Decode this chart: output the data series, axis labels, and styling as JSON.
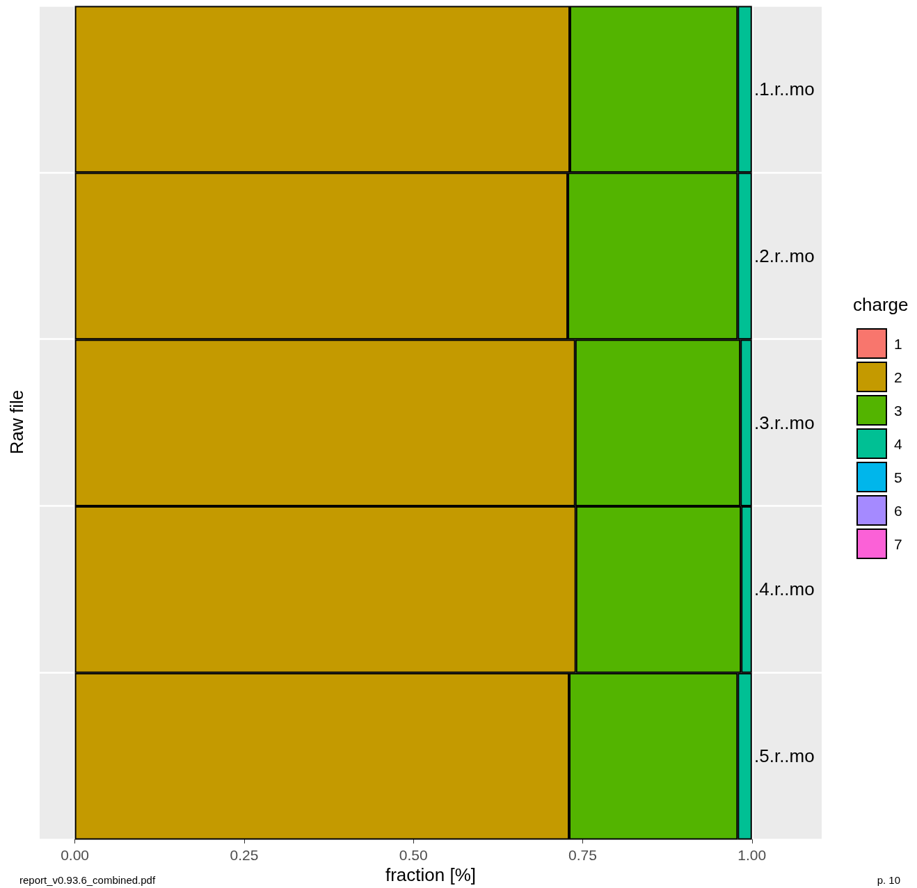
{
  "chart_data": {
    "type": "bar",
    "orientation": "horizontal",
    "stacked": true,
    "xlabel": "fraction [%]",
    "ylabel": "Raw file",
    "legend_title": "charge",
    "categories": [
      ".1.r..mo",
      ".2.r..mo",
      ".3.r..mo",
      ".4.r..mo",
      ".5.r..mo"
    ],
    "series": [
      {
        "name": "1",
        "color": "#f8766d",
        "values": [
          null,
          null,
          null,
          null,
          null
        ]
      },
      {
        "name": "2",
        "color": "#c49a00",
        "values": [
          0.731,
          0.728,
          0.739,
          0.74,
          0.73
        ]
      },
      {
        "name": "3",
        "color": "#53b400",
        "values": [
          0.248,
          0.251,
          0.244,
          0.244,
          0.249
        ]
      },
      {
        "name": "4",
        "color": "#00c094",
        "values": [
          0.021,
          0.021,
          0.017,
          0.016,
          0.021
        ]
      },
      {
        "name": "5",
        "color": "#00b6eb",
        "values": [
          null,
          null,
          null,
          null,
          null
        ]
      },
      {
        "name": "6",
        "color": "#a58aff",
        "values": [
          null,
          null,
          null,
          null,
          null
        ]
      },
      {
        "name": "7",
        "color": "#fb61d7",
        "values": [
          null,
          null,
          null,
          null,
          null
        ]
      }
    ],
    "xlim": [
      -0.052,
      1.103
    ],
    "xticks": [
      {
        "value": 0,
        "label": "0.00"
      },
      {
        "value": 0.25,
        "label": "0.25"
      },
      {
        "value": 0.5,
        "label": "0.50"
      },
      {
        "value": 0.75,
        "label": "0.75"
      },
      {
        "value": 1,
        "label": "1.00"
      }
    ],
    "grid": true,
    "legend": "right",
    "annotations": [
      "report_v0.93.6_combined.pdf",
      "p. 10"
    ]
  }
}
